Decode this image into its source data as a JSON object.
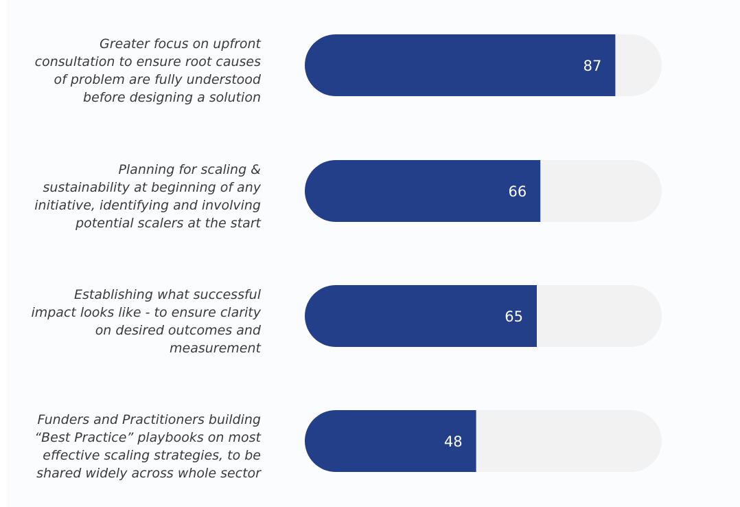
{
  "chart_data": {
    "type": "bar",
    "orientation": "horizontal",
    "categories": [
      "Greater focus on upfront consultation to ensure root causes of problem are fully understood before designing a solution",
      "Planning for scaling & sustainability at beginning of any initiative, identifying and involving potential scalers at the start",
      "Establishing what successful impact looks like - to ensure clarity on desired outcomes and measurement",
      "Funders and Practitioners building “Best Practice” playbooks on most effective scaling strategies, to be shared widely across whole sector"
    ],
    "values": [
      87,
      66,
      65,
      48
    ],
    "color": "#233f8a",
    "track_color": "#f2f2f2",
    "xlim": [
      0,
      100
    ]
  }
}
